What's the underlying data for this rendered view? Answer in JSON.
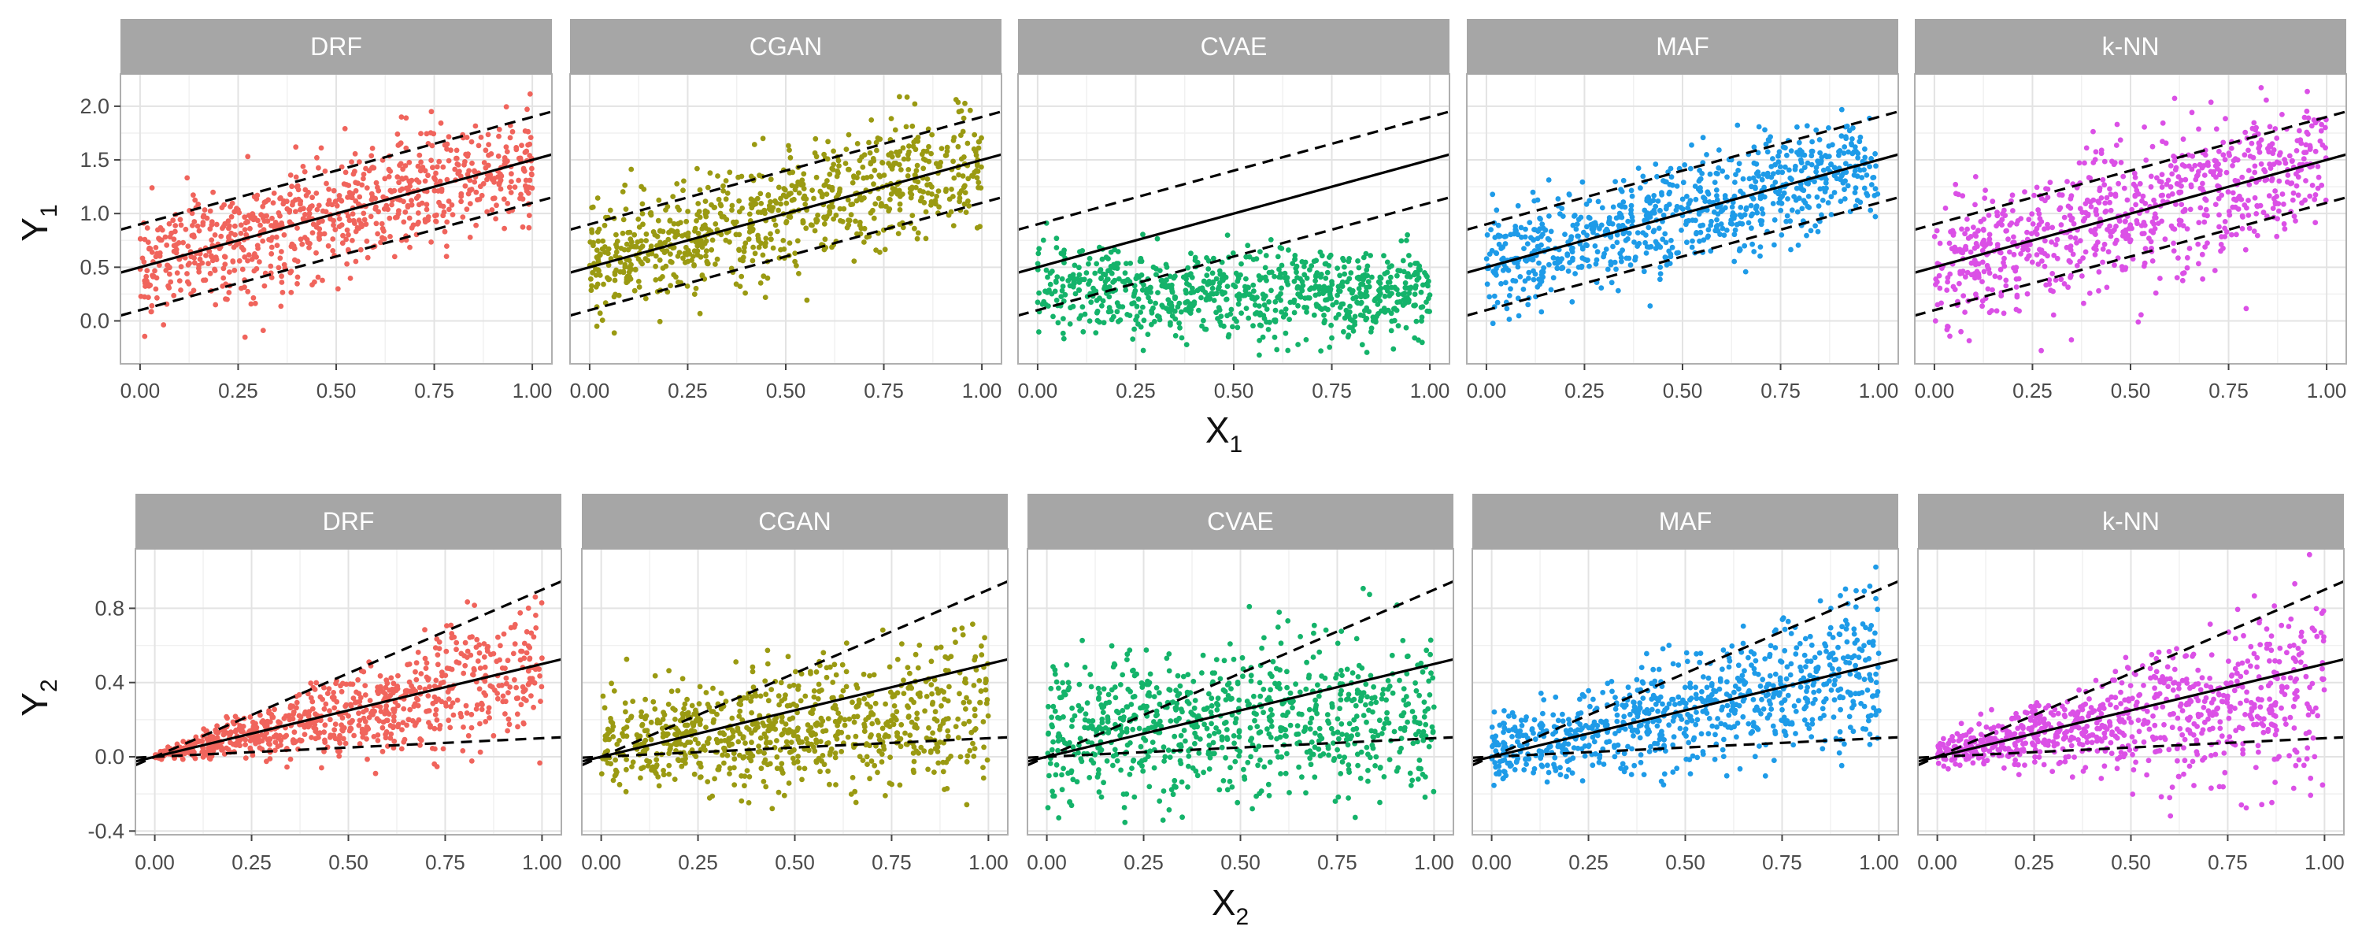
{
  "colors": {
    "DRF": "#F0645C",
    "CGAN": "#9A9A12",
    "CVAE": "#14B36A",
    "MAF": "#1E9BE8",
    "k-NN": "#DB50E6",
    "strip_bg": "#A6A6A6",
    "strip_text": "#FFFFFF",
    "panel_border": "#AFAFAF",
    "grid_major": "#E3E3E3",
    "grid_minor": "#F1F1F1",
    "reference_line": "#000000"
  },
  "chart_data": [
    {
      "type": "scatter",
      "facets": [
        "DRF",
        "CGAN",
        "CVAE",
        "MAF",
        "k-NN"
      ],
      "xlabel": "X",
      "xlabel_sub": "1",
      "ylabel": "Y",
      "ylabel_sub": "1",
      "xlim": [
        -0.05,
        1.05
      ],
      "ylim": [
        -0.4,
        2.3
      ],
      "x_ticks": [
        0.0,
        0.25,
        0.5,
        0.75,
        1.0
      ],
      "x_tick_labels": [
        "0.00",
        "0.25",
        "0.50",
        "0.75",
        "1.00"
      ],
      "y_ticks": [
        0.0,
        0.5,
        1.0,
        1.5,
        2.0
      ],
      "y_tick_labels": [
        "0.0",
        "0.5",
        "1.0",
        "1.5",
        "2.0"
      ],
      "grid": true,
      "points_per_panel": 800,
      "reference_lines": {
        "mean": {
          "intercept": 0.5,
          "slope": 1.0,
          "style": "solid"
        },
        "upper": {
          "intercept": 0.9,
          "slope": 1.0,
          "style": "dashed"
        },
        "lower": {
          "intercept": 0.1,
          "slope": 1.0,
          "style": "dashed"
        }
      },
      "series": [
        {
          "facet": "DRF",
          "center_intercept": 0.5,
          "center_slope": 1.0,
          "spread": 0.28
        },
        {
          "facet": "CGAN",
          "center_intercept": 0.55,
          "center_slope": 0.95,
          "spread": 0.27
        },
        {
          "facet": "CVAE",
          "center_intercept": 0.3,
          "center_slope": -0.05,
          "spread": 0.2
        },
        {
          "facet": "MAF",
          "center_intercept": 0.5,
          "center_slope": 1.0,
          "spread": 0.24
        },
        {
          "facet": "k-NN",
          "center_intercept": 0.5,
          "center_slope": 1.0,
          "spread": 0.33
        }
      ]
    },
    {
      "type": "scatter",
      "facets": [
        "DRF",
        "CGAN",
        "CVAE",
        "MAF",
        "k-NN"
      ],
      "xlabel": "X",
      "xlabel_sub": "2",
      "ylabel": "Y",
      "ylabel_sub": "2",
      "xlim": [
        -0.05,
        1.05
      ],
      "ylim": [
        -0.42,
        1.12
      ],
      "x_ticks": [
        0.0,
        0.25,
        0.5,
        0.75,
        1.0
      ],
      "x_tick_labels": [
        "0.00",
        "0.25",
        "0.50",
        "0.75",
        "1.00"
      ],
      "y_ticks": [
        -0.4,
        0.0,
        0.4,
        0.8
      ],
      "y_tick_labels": [
        "-0.4",
        "0.0",
        "0.4",
        "0.8"
      ],
      "grid": true,
      "points_per_panel": 800,
      "reference_lines": {
        "mean": {
          "intercept": 0.0,
          "slope": 0.5,
          "style": "solid"
        },
        "upper": {
          "intercept": 0.0,
          "slope": 0.9,
          "style": "dashed"
        },
        "lower": {
          "intercept": 0.0,
          "slope": 0.1,
          "style": "dashed"
        }
      },
      "series": [
        {
          "facet": "DRF",
          "center_intercept": 0.0,
          "center_slope": 0.48,
          "spread_base": 0.01,
          "spread_slope": 0.2
        },
        {
          "facet": "CGAN",
          "center_intercept": 0.06,
          "center_slope": 0.2,
          "spread_base": 0.12,
          "spread_slope": 0.08
        },
        {
          "facet": "CVAE",
          "center_intercept": 0.15,
          "center_slope": 0.05,
          "spread_base": 0.2,
          "spread_slope": 0.02
        },
        {
          "facet": "MAF",
          "center_intercept": 0.03,
          "center_slope": 0.45,
          "spread_base": 0.09,
          "spread_slope": 0.12
        },
        {
          "facet": "k-NN",
          "center_intercept": 0.02,
          "center_slope": 0.35,
          "spread_base": 0.04,
          "spread_slope": 0.22
        }
      ]
    }
  ]
}
